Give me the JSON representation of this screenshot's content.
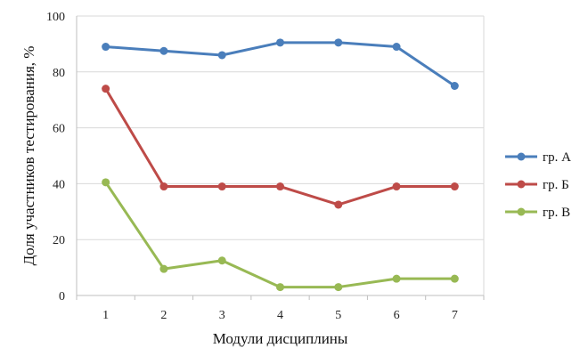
{
  "chart_data": {
    "type": "line",
    "x": [
      "1",
      "2",
      "3",
      "4",
      "5",
      "6",
      "7"
    ],
    "series": [
      {
        "name": "гр. А",
        "color": "#4a7ebb",
        "values": [
          89,
          87.5,
          86,
          90.5,
          90.5,
          89,
          75
        ]
      },
      {
        "name": "гр. Б",
        "color": "#be4b48",
        "values": [
          74,
          39,
          39,
          39,
          32.5,
          39,
          39
        ]
      },
      {
        "name": "гр. В",
        "color": "#98b954",
        "values": [
          40.5,
          9.5,
          12.5,
          3,
          3,
          6,
          6
        ]
      }
    ],
    "xlabel": "Модули дисциплины",
    "ylabel": "Доля участников тестирования, %",
    "ylim": [
      0,
      100
    ],
    "yticks": [
      0,
      20,
      40,
      60,
      80,
      100
    ],
    "grid": true,
    "legend_position": "right"
  }
}
